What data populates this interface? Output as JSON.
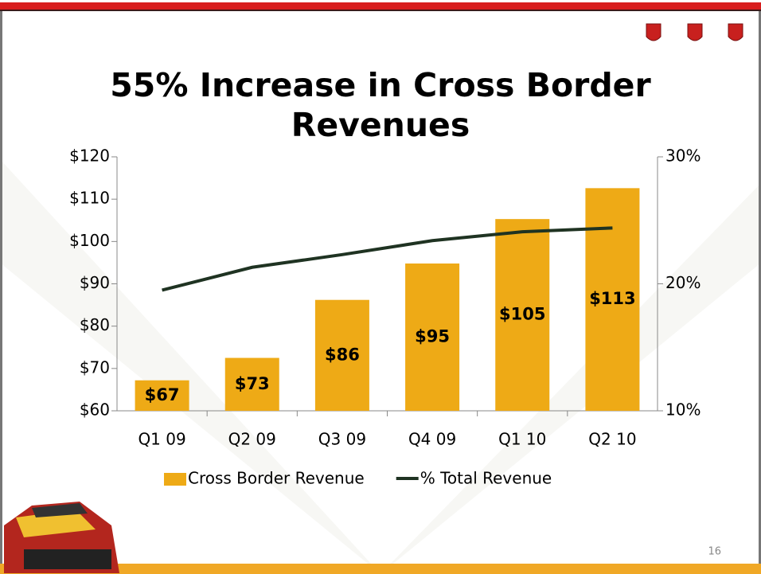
{
  "chart_data": {
    "type": "bar_line",
    "title": "55% Increase in Cross Border Revenues",
    "categories": [
      "Q1 09",
      "Q2 09",
      "Q3 09",
      "Q4 09",
      "Q1 10",
      "Q2 10"
    ],
    "series": [
      {
        "name": "Cross Border Revenue",
        "color": "#eeaa16",
        "type": "bar",
        "values": [
          67.2,
          72.5,
          86.2,
          94.8,
          105.3,
          112.6
        ],
        "value_labels": [
          "$67",
          "$73",
          "$86",
          "$95",
          "$105",
          "$113"
        ]
      },
      {
        "name": "% Total Revenue",
        "color": "#1f3322",
        "type": "line",
        "axis": "y2",
        "values": [
          19.5,
          21.3,
          22.3,
          23.4,
          24.1,
          24.4
        ]
      }
    ],
    "ylim": [
      60,
      120
    ],
    "yticks": [
      {
        "value": 60,
        "label": "$60"
      },
      {
        "value": 70,
        "label": "$70"
      },
      {
        "value": 80,
        "label": "$80"
      },
      {
        "value": 90,
        "label": "$90"
      },
      {
        "value": 100,
        "label": "$100"
      },
      {
        "value": 110,
        "label": "$110"
      },
      {
        "value": 120,
        "label": "$120"
      }
    ],
    "y2lim": [
      10,
      30
    ],
    "y2ticks": [
      {
        "value": 10,
        "label": "10%"
      },
      {
        "value": 20,
        "label": "20%"
      },
      {
        "value": 30,
        "label": "30%"
      }
    ],
    "page_number": "16"
  }
}
